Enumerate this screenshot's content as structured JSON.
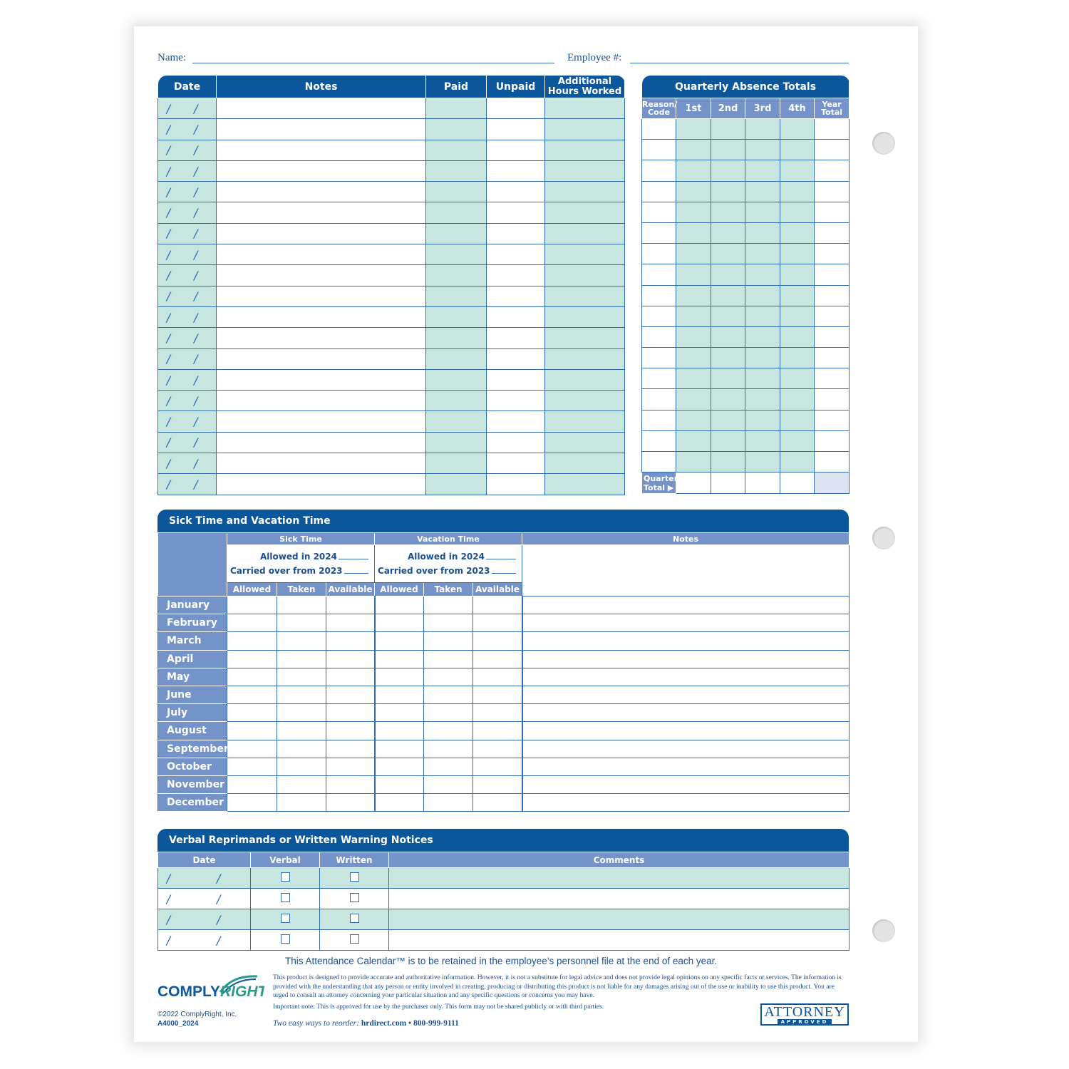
{
  "header": {
    "name_label": "Name:",
    "employee_label": "Employee #:"
  },
  "attendance": {
    "columns": [
      "Date",
      "Notes",
      "Paid",
      "Unpaid",
      "Additional Hours Worked"
    ],
    "row_count": 19,
    "date_placeholder": "/ /"
  },
  "quarterly": {
    "title": "Quarterly Absence Totals",
    "columns": [
      "Reason/ Code",
      "1st",
      "2nd",
      "3rd",
      "4th",
      "Year Total"
    ],
    "row_count": 17,
    "total_label": "Quarter Total ▶"
  },
  "sick_vacation": {
    "title": "Sick Time and Vacation Time",
    "sick_label": "Sick Time",
    "vacation_label": "Vacation Time",
    "notes_label": "Notes",
    "allowed_in": "Allowed in 2024",
    "carried_over": "Carried over from 2023",
    "sub_columns": [
      "Allowed",
      "Taken",
      "Available"
    ],
    "months": [
      "January",
      "February",
      "March",
      "April",
      "May",
      "June",
      "July",
      "August",
      "September",
      "October",
      "November",
      "December"
    ]
  },
  "reprimands": {
    "title": "Verbal Reprimands or Written Warning Notices",
    "columns": [
      "Date",
      "Verbal",
      "Written",
      "Comments"
    ],
    "row_count": 4,
    "date_placeholder": "/ /"
  },
  "footer": {
    "retain_note": "This Attendance Calendar™ is to be retained in the employee’s personnel file at the end of each year.",
    "disclaimer": "This product is designed to provide accurate and authoritative information. However, it is not a substitute for legal advice and does not provide legal opinions on any specific facts or services. The information is provided with the understanding that any person or entity involved in creating, producing or distributing this product is not liable for any damages arising out of the use or inability to use this product. You are urged to consult an attorney concerning your particular situation and any specific questions or concerns you may have.",
    "important": "Important note: This is approved for use by the purchaser only. This form may not be shared publicly or with third parties.",
    "reorder_label": "Two easy ways to reorder:",
    "reorder_contact": "hrdirect.com • 800-999-9111",
    "copyright": "©2022 ComplyRight, Inc.",
    "form_code": "A4000_2024",
    "logo_text": "COMPLYRIGHT",
    "badge_top": "ATTORNEY",
    "badge_bottom": "APPROVED"
  },
  "colors": {
    "primary": "#0c569c",
    "secondary": "#7393c9",
    "teal": "#c6e6df",
    "line": "#2f6db5"
  }
}
